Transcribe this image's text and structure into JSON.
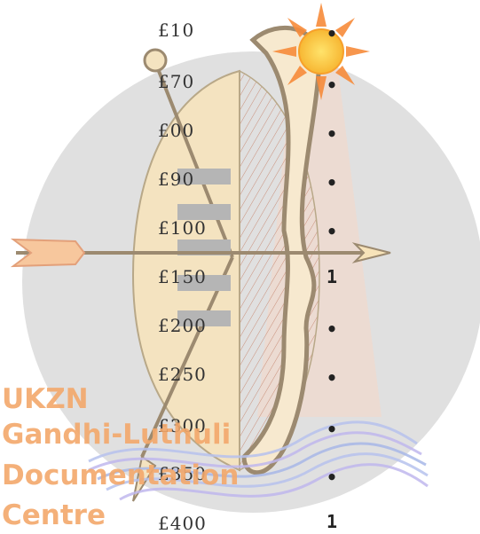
{
  "prices": [
    "£10",
    "£70",
    "£00",
    "£90",
    "£100",
    "£150",
    "£200",
    "£250",
    "£300",
    "£350",
    "£400"
  ],
  "marks": [
    "•",
    "•",
    "•",
    "•",
    "•",
    "1",
    "•",
    "•",
    "•",
    "•",
    "1"
  ],
  "watermark": [
    "UKZN",
    "Gandhi-Luthuli",
    "Documentation",
    "Centre"
  ],
  "colors": {
    "circle": "#e0e0e0",
    "shield": "#f4e3c0",
    "bow": "#f7e9cf",
    "bow_outline": "#9c8a70",
    "sun": "#f7b733",
    "waves": "#a8b8e8",
    "watermark": "#f3a86b"
  }
}
